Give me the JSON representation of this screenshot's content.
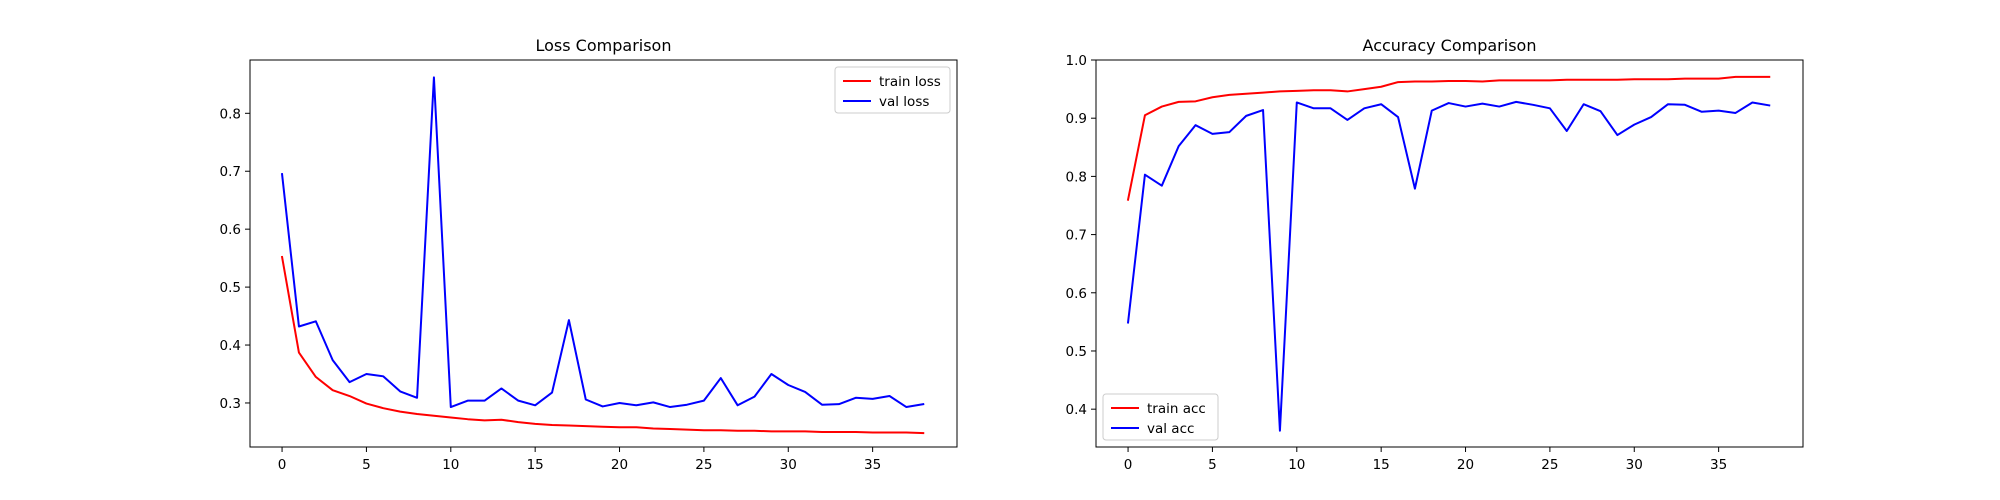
{
  "chart_data": [
    {
      "type": "line",
      "title": "Loss Comparison",
      "xlabel": "",
      "ylabel": "",
      "xlim": [
        -1.9,
        40.0
      ],
      "ylim": [
        0.224,
        0.892
      ],
      "xticks": [
        0,
        5,
        10,
        15,
        20,
        25,
        30,
        35
      ],
      "yticks": [
        0.3,
        0.4,
        0.5,
        0.6,
        0.7,
        0.8
      ],
      "grid": false,
      "legend": "top-right",
      "x": [
        0,
        1,
        2,
        3,
        4,
        5,
        6,
        7,
        8,
        9,
        10,
        11,
        12,
        13,
        14,
        15,
        16,
        17,
        18,
        19,
        20,
        21,
        22,
        23,
        24,
        25,
        26,
        27,
        28,
        29,
        30,
        31,
        32,
        33,
        34,
        35,
        36,
        37,
        38
      ],
      "series": [
        {
          "name": "train loss",
          "color": "#ff0000",
          "values": [
            0.552,
            0.387,
            0.345,
            0.322,
            0.312,
            0.299,
            0.291,
            0.285,
            0.281,
            0.278,
            0.275,
            0.272,
            0.27,
            0.271,
            0.267,
            0.264,
            0.262,
            0.261,
            0.26,
            0.259,
            0.258,
            0.258,
            0.256,
            0.255,
            0.254,
            0.253,
            0.253,
            0.252,
            0.252,
            0.251,
            0.251,
            0.251,
            0.25,
            0.25,
            0.25,
            0.249,
            0.249,
            0.249,
            0.248
          ]
        },
        {
          "name": "val loss",
          "color": "#0000ff",
          "values": [
            0.695,
            0.432,
            0.441,
            0.374,
            0.336,
            0.35,
            0.346,
            0.32,
            0.309,
            0.862,
            0.293,
            0.304,
            0.304,
            0.325,
            0.304,
            0.296,
            0.318,
            0.443,
            0.306,
            0.294,
            0.3,
            0.296,
            0.301,
            0.293,
            0.297,
            0.304,
            0.343,
            0.296,
            0.311,
            0.35,
            0.331,
            0.319,
            0.297,
            0.298,
            0.309,
            0.307,
            0.312,
            0.293,
            0.298
          ]
        }
      ]
    },
    {
      "type": "line",
      "title": "Accuracy Comparison",
      "xlabel": "",
      "ylabel": "",
      "xlim": [
        -1.9,
        40.0
      ],
      "ylim": [
        0.335,
        1.0
      ],
      "xticks": [
        0,
        5,
        10,
        15,
        20,
        25,
        30,
        35
      ],
      "yticks": [
        0.4,
        0.5,
        0.6,
        0.7,
        0.8,
        0.9,
        1.0
      ],
      "grid": false,
      "legend": "bottom-left",
      "x": [
        0,
        1,
        2,
        3,
        4,
        5,
        6,
        7,
        8,
        9,
        10,
        11,
        12,
        13,
        14,
        15,
        16,
        17,
        18,
        19,
        20,
        21,
        22,
        23,
        24,
        25,
        26,
        27,
        28,
        29,
        30,
        31,
        32,
        33,
        34,
        35,
        36,
        37,
        38
      ],
      "series": [
        {
          "name": "train acc",
          "color": "#ff0000",
          "values": [
            0.76,
            0.905,
            0.92,
            0.928,
            0.929,
            0.936,
            0.94,
            0.942,
            0.944,
            0.946,
            0.947,
            0.948,
            0.948,
            0.946,
            0.95,
            0.954,
            0.962,
            0.963,
            0.963,
            0.964,
            0.964,
            0.963,
            0.965,
            0.965,
            0.965,
            0.965,
            0.966,
            0.966,
            0.966,
            0.966,
            0.967,
            0.967,
            0.967,
            0.968,
            0.968,
            0.968,
            0.971,
            0.971,
            0.971
          ]
        },
        {
          "name": "val acc",
          "color": "#0000ff",
          "values": [
            0.549,
            0.803,
            0.784,
            0.852,
            0.888,
            0.873,
            0.876,
            0.904,
            0.914,
            0.363,
            0.927,
            0.917,
            0.917,
            0.897,
            0.917,
            0.924,
            0.902,
            0.779,
            0.913,
            0.926,
            0.92,
            0.925,
            0.92,
            0.928,
            0.923,
            0.917,
            0.878,
            0.924,
            0.912,
            0.871,
            0.889,
            0.902,
            0.924,
            0.923,
            0.911,
            0.913,
            0.909,
            0.927,
            0.922
          ]
        }
      ]
    }
  ]
}
